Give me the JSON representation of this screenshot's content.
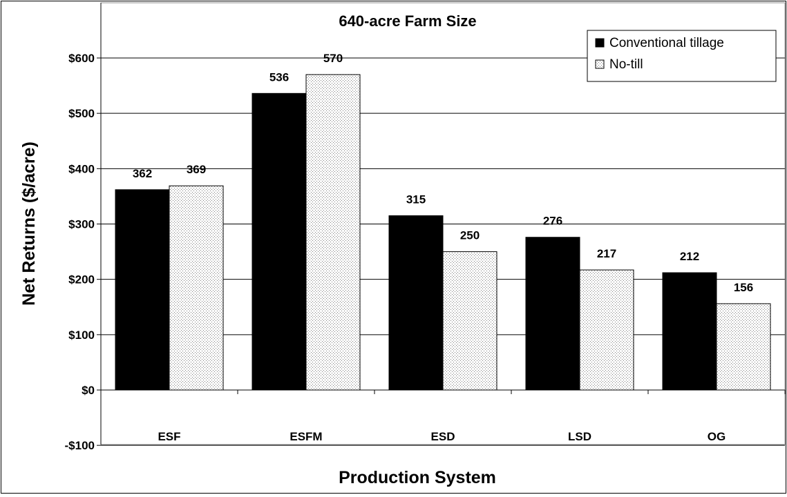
{
  "chart_data": {
    "type": "bar",
    "title": "640-acre Farm Size",
    "xlabel": "Production System",
    "ylabel": "Net Returns ($/acre)",
    "categories": [
      "ESF",
      "ESFM",
      "ESD",
      "LSD",
      "OG"
    ],
    "series": [
      {
        "name": "Conventional tillage",
        "values": [
          362,
          536,
          315,
          276,
          212
        ],
        "color": "#000000",
        "pattern": "solid"
      },
      {
        "name": "No-till",
        "values": [
          369,
          570,
          250,
          217,
          156
        ],
        "color": "#ffffff",
        "pattern": "dotted"
      }
    ],
    "ylim": [
      -100,
      600
    ],
    "yticks": [
      -100,
      0,
      100,
      200,
      300,
      400,
      500,
      600
    ],
    "ytick_labels": [
      "-$100",
      "$0",
      "$100",
      "$200",
      "$300",
      "$400",
      "$500",
      "$600"
    ],
    "data_labels": [
      [
        "362",
        "536",
        "315",
        "276",
        "212"
      ],
      [
        "369",
        "570",
        "250",
        "217",
        "156"
      ]
    ],
    "grid": "horizontal",
    "legend_position": "top-right"
  }
}
